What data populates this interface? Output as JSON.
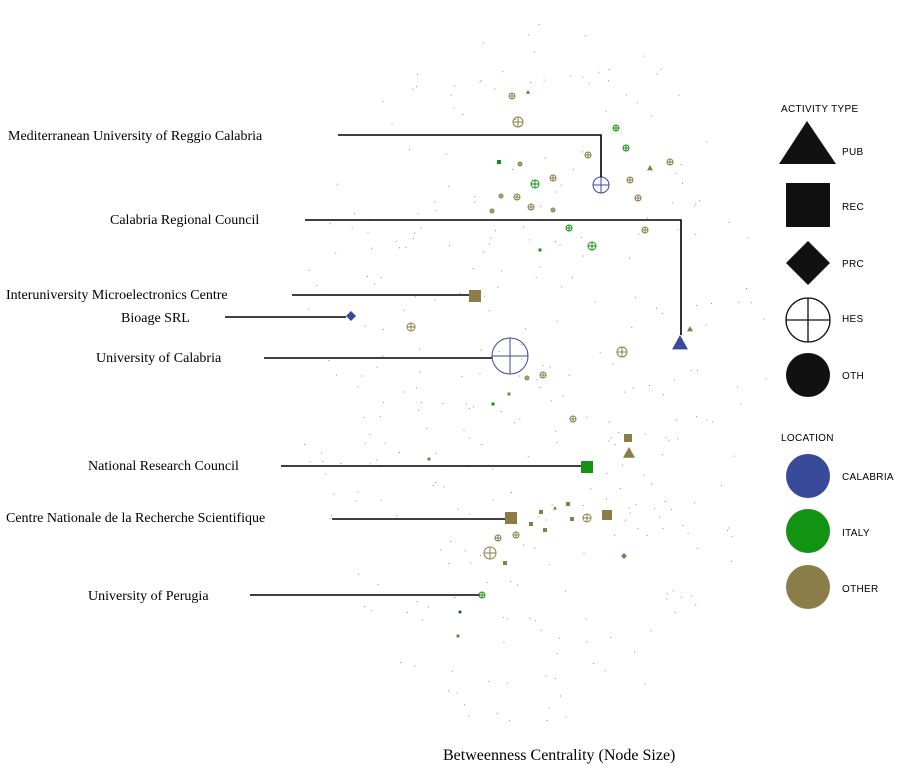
{
  "colors": {
    "calabria": "#3a4a9a",
    "italy": "#139313",
    "other": "#8b7d47",
    "legend_shape": "#111111",
    "leader_line": "#000000",
    "dots": "#8a8a8a"
  },
  "caption": "Betweenness  Centrality (Node Size)",
  "org_labels": [
    "Mediterranean University of Reggio Calabria",
    "Calabria Regional Council",
    "Interuniversity Microelectronics Centre",
    "Bioage SRL",
    "University of Calabria",
    "National Research Council",
    "Centre Nationale de la Recherche Scientifique",
    "University of Perugia"
  ],
  "legend": {
    "activity_title": "ACTIVITY TYPE",
    "activity_items": [
      {
        "code": "PUB",
        "icon": "triangle"
      },
      {
        "code": "REC",
        "icon": "square"
      },
      {
        "code": "PRC",
        "icon": "diamond"
      },
      {
        "code": "HES",
        "icon": "circle-cross"
      },
      {
        "code": "OTH",
        "icon": "circle"
      }
    ],
    "location_title": "LOCATION",
    "location_items": [
      {
        "code": "CALABRIA",
        "color_key": "calabria"
      },
      {
        "code": "ITALY",
        "color_key": "italy"
      },
      {
        "code": "OTHER",
        "color_key": "other"
      }
    ]
  }
}
